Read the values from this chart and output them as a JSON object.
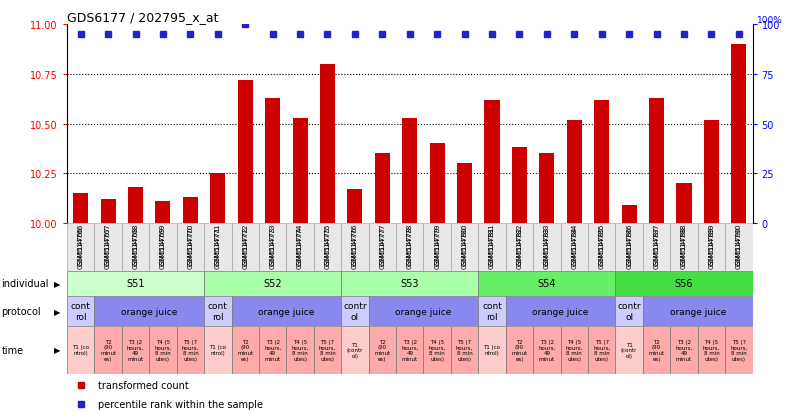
{
  "title": "GDS6177 / 202795_x_at",
  "samples": [
    "GSM514766",
    "GSM514767",
    "GSM514768",
    "GSM514769",
    "GSM514770",
    "GSM514771",
    "GSM514772",
    "GSM514773",
    "GSM514774",
    "GSM514775",
    "GSM514776",
    "GSM514777",
    "GSM514778",
    "GSM514779",
    "GSM514780",
    "GSM514781",
    "GSM514782",
    "GSM514783",
    "GSM514784",
    "GSM514785",
    "GSM514786",
    "GSM514787",
    "GSM514788",
    "GSM514789",
    "GSM514790"
  ],
  "bar_values": [
    10.15,
    10.12,
    10.18,
    10.11,
    10.13,
    10.25,
    10.72,
    10.63,
    10.53,
    10.8,
    10.17,
    10.35,
    10.53,
    10.4,
    10.3,
    10.62,
    10.38,
    10.35,
    10.52,
    10.62,
    10.09,
    10.63,
    10.2,
    10.52,
    10.9
  ],
  "percentile_values": [
    95,
    95,
    95,
    95,
    95,
    95,
    100,
    95,
    95,
    95,
    95,
    95,
    95,
    95,
    95,
    95,
    95,
    95,
    95,
    95,
    95,
    95,
    95,
    95,
    95
  ],
  "bar_color": "#cc0000",
  "percentile_color": "#2222cc",
  "ylim_left": [
    10,
    11
  ],
  "ylim_right": [
    0,
    100
  ],
  "yticks_left": [
    10,
    10.25,
    10.5,
    10.75,
    11
  ],
  "yticks_right": [
    0,
    25,
    50,
    75,
    100
  ],
  "dotted_lines": [
    10.25,
    10.5,
    10.75
  ],
  "individuals": [
    {
      "label": "S51",
      "start": 0,
      "end": 5,
      "color": "#ccffcc"
    },
    {
      "label": "S52",
      "start": 5,
      "end": 10,
      "color": "#aaffaa"
    },
    {
      "label": "S53",
      "start": 10,
      "end": 15,
      "color": "#aaffaa"
    },
    {
      "label": "S54",
      "start": 15,
      "end": 20,
      "color": "#66ee66"
    },
    {
      "label": "S56",
      "start": 20,
      "end": 25,
      "color": "#44dd44"
    }
  ],
  "protocols": [
    {
      "label": "cont\nrol",
      "start": 0,
      "end": 1,
      "color": "#ccccff"
    },
    {
      "label": "orange juice",
      "start": 1,
      "end": 5,
      "color": "#8888ee"
    },
    {
      "label": "cont\nrol",
      "start": 5,
      "end": 6,
      "color": "#ccccff"
    },
    {
      "label": "orange juice",
      "start": 6,
      "end": 10,
      "color": "#8888ee"
    },
    {
      "label": "contr\nol",
      "start": 10,
      "end": 11,
      "color": "#ccccff"
    },
    {
      "label": "orange juice",
      "start": 11,
      "end": 15,
      "color": "#8888ee"
    },
    {
      "label": "cont\nrol",
      "start": 15,
      "end": 16,
      "color": "#ccccff"
    },
    {
      "label": "orange juice",
      "start": 16,
      "end": 20,
      "color": "#8888ee"
    },
    {
      "label": "contr\nol",
      "start": 20,
      "end": 21,
      "color": "#ccccff"
    },
    {
      "label": "orange juice",
      "start": 21,
      "end": 25,
      "color": "#8888ee"
    }
  ],
  "time_colors": [
    "#ffcccc",
    "#ffaaaa"
  ],
  "times": [
    {
      "label": "T1 (co\nntrol)",
      "start": 0,
      "end": 1,
      "ci": 0
    },
    {
      "label": "T2\n(90\nminut\nes)",
      "start": 1,
      "end": 2,
      "ci": 1
    },
    {
      "label": "T3 (2\nhours,\n49\nminut",
      "start": 2,
      "end": 3,
      "ci": 1
    },
    {
      "label": "T4 (5\nhours,\n8 min\nutes)",
      "start": 3,
      "end": 4,
      "ci": 1
    },
    {
      "label": "T5 (7\nhours,\n8 min\nutes)",
      "start": 4,
      "end": 5,
      "ci": 1
    },
    {
      "label": "T1 (co\nntrol)",
      "start": 5,
      "end": 6,
      "ci": 0
    },
    {
      "label": "T2\n(90\nminut\nes)",
      "start": 6,
      "end": 7,
      "ci": 1
    },
    {
      "label": "T3 (2\nhours,\n49\nminut",
      "start": 7,
      "end": 8,
      "ci": 1
    },
    {
      "label": "T4 (5\nhours,\n8 min\nutes)",
      "start": 8,
      "end": 9,
      "ci": 1
    },
    {
      "label": "T5 (7\nhours,\n8 min\nutes)",
      "start": 9,
      "end": 10,
      "ci": 1
    },
    {
      "label": "T1\n(contr\nol)",
      "start": 10,
      "end": 11,
      "ci": 0
    },
    {
      "label": "T2\n(90\nminut\nes)",
      "start": 11,
      "end": 12,
      "ci": 1
    },
    {
      "label": "T3 (2\nhours,\n49\nminut",
      "start": 12,
      "end": 13,
      "ci": 1
    },
    {
      "label": "T4 (5\nhours,\n8 min\nutes)",
      "start": 13,
      "end": 14,
      "ci": 1
    },
    {
      "label": "T5 (7\nhours,\n8 min\nutes)",
      "start": 14,
      "end": 15,
      "ci": 1
    },
    {
      "label": "T1 (co\nntrol)",
      "start": 15,
      "end": 16,
      "ci": 0
    },
    {
      "label": "T2\n(90\nminut\nes)",
      "start": 16,
      "end": 17,
      "ci": 1
    },
    {
      "label": "T3 (2\nhours,\n49\nminut",
      "start": 17,
      "end": 18,
      "ci": 1
    },
    {
      "label": "T4 (5\nhours,\n8 min\nutes)",
      "start": 18,
      "end": 19,
      "ci": 1
    },
    {
      "label": "T5 (7\nhours,\n8 min\nutes)",
      "start": 19,
      "end": 20,
      "ci": 1
    },
    {
      "label": "T1\n(contr\nol)",
      "start": 20,
      "end": 21,
      "ci": 0
    },
    {
      "label": "T2\n(90\nminut\nes)",
      "start": 21,
      "end": 22,
      "ci": 1
    },
    {
      "label": "T3 (2\nhours,\n49\nminut",
      "start": 22,
      "end": 23,
      "ci": 1
    },
    {
      "label": "T4 (5\nhours,\n8 min\nutes)",
      "start": 23,
      "end": 24,
      "ci": 1
    },
    {
      "label": "T5 (7\nhours,\n8 min\nutes)",
      "start": 24,
      "end": 25,
      "ci": 1
    }
  ],
  "legend_items": [
    {
      "label": "transformed count",
      "color": "#cc0000"
    },
    {
      "label": "percentile rank within the sample",
      "color": "#2222cc"
    }
  ],
  "row_labels": [
    "individual",
    "protocol",
    "time"
  ],
  "background_color": "#ffffff"
}
